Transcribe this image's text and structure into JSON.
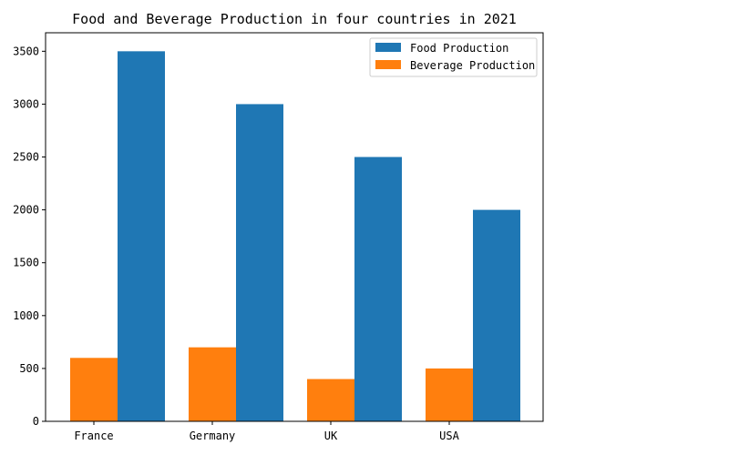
{
  "chart_data": {
    "type": "bar",
    "title": "Food and Beverage Production in four countries in 2021",
    "categories": [
      "France",
      "Germany",
      "UK",
      "USA"
    ],
    "series": [
      {
        "name": "Food Production",
        "values": [
          3500,
          3000,
          2500,
          2000
        ],
        "color": "#1f77b4"
      },
      {
        "name": "Beverage Production",
        "values": [
          600,
          700,
          400,
          500
        ],
        "color": "#ff7f0e"
      }
    ],
    "xlabel": "",
    "ylabel": "",
    "ylim": [
      0,
      3675
    ],
    "yticks": [
      0,
      500,
      1000,
      1500,
      2000,
      2500,
      3000,
      3500
    ],
    "grid": false,
    "legend_position": "top-right"
  }
}
